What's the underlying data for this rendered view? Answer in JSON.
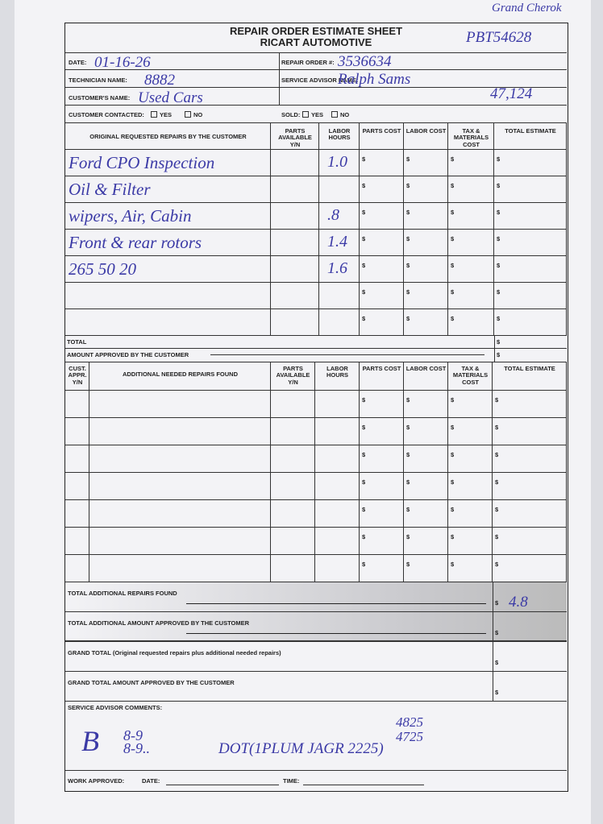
{
  "margin_notes": {
    "vehicle": "Grand Cherok",
    "stock_number": "PBT54628",
    "mileage": "47,124"
  },
  "header": {
    "title": "REPAIR ORDER ESTIMATE SHEET",
    "company": "RICART AUTOMOTIVE"
  },
  "fields": {
    "date_label": "DATE:",
    "date": "01-16-26",
    "repair_order_label": "REPAIR ORDER #:",
    "repair_order": "3536634",
    "technician_label": "TECHNICIAN NAME:",
    "technician": "8882",
    "advisor_label": "SERVICE ADVISOR NAME:",
    "advisor": "Ralph Sams",
    "customer_label": "CUSTOMER'S NAME:",
    "customer": "Used Cars",
    "contacted_label": "CUSTOMER CONTACTED:",
    "sold_label": "SOLD:",
    "yes": "YES",
    "no": "NO"
  },
  "currency": "$",
  "original_table": {
    "headers": [
      "ORIGINAL REQUESTED REPAIRS BY THE CUSTOMER",
      "PARTS AVAILABLE Y/N",
      "LABOR HOURS",
      "PARTS COST",
      "LABOR COST",
      "TAX & MATERIALS COST",
      "TOTAL ESTIMATE"
    ],
    "rows": [
      [
        "Ford CPO Inspection",
        "1.0"
      ],
      [
        "Oil & Filter",
        null
      ],
      [
        "wipers, Air, Cabin",
        ".8"
      ],
      [
        "Front & rear rotors",
        "1.4"
      ],
      [
        "265 50 20",
        "1.6"
      ]
    ],
    "total_label": "TOTAL",
    "approved_label": "AMOUNT APPROVED BY THE CUSTOMER"
  },
  "additional_table": {
    "headers": [
      "CUST. APPR. Y/N",
      "ADDITIONAL NEEDED REPAIRS FOUND",
      "PARTS AVAILABLE Y/N",
      "LABOR HOURS",
      "PARTS COST",
      "LABOR COST",
      "TAX & MATERIALS COST",
      "TOTAL ESTIMATE"
    ]
  },
  "totals": {
    "additional_found_label": "TOTAL ADDITIONAL REPAIRS FOUND",
    "additional_found_value": "4.8",
    "additional_approved_label": "TOTAL ADDITIONAL AMOUNT APPROVED BY THE CUSTOMER",
    "grand_total_label": "GRAND TOTAL (Original requested repairs plus additional needed repairs)",
    "grand_approved_label": "GRAND TOTAL AMOUNT APPROVED BY THE CUSTOMER"
  },
  "comments": {
    "label": "SERVICE ADVISOR COMMENTS:",
    "notes": [
      "B",
      "8-9",
      "8-9..",
      "DOT(1PLUM JAGR 2225)",
      "4825",
      "4725"
    ]
  },
  "footer": {
    "work_approved": "WORK APPROVED:",
    "date": "DATE:",
    "time": "TIME:"
  }
}
